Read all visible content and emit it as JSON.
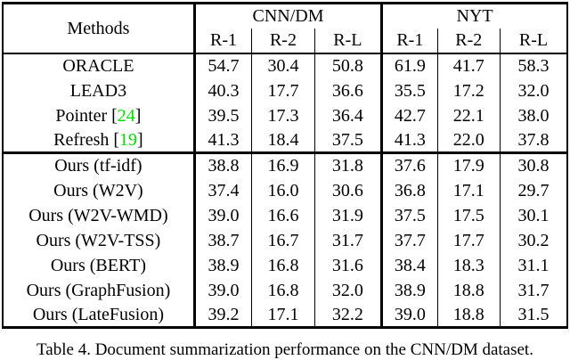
{
  "table": {
    "header": {
      "methods_label": "Methods",
      "groups": [
        {
          "label": "CNN/DM",
          "subcols": [
            "R-1",
            "R-2",
            "R-L"
          ]
        },
        {
          "label": "NYT",
          "subcols": [
            "R-1",
            "R-2",
            "R-L"
          ]
        }
      ]
    },
    "baseline_rows": [
      {
        "method": "ORACLE",
        "citation": null,
        "values": [
          "54.7",
          "30.4",
          "50.8",
          "61.9",
          "41.7",
          "58.3"
        ]
      },
      {
        "method": "LEAD3",
        "citation": null,
        "values": [
          "40.3",
          "17.7",
          "36.6",
          "35.5",
          "17.2",
          "32.0"
        ]
      },
      {
        "method": "Pointer",
        "citation": "24",
        "values": [
          "39.5",
          "17.3",
          "36.4",
          "42.7",
          "22.1",
          "38.0"
        ]
      },
      {
        "method": "Refresh",
        "citation": "19",
        "values": [
          "41.3",
          "18.4",
          "37.5",
          "41.3",
          "22.0",
          "37.8"
        ]
      }
    ],
    "ours_rows": [
      {
        "method": "Ours (tf-idf)",
        "citation": null,
        "values": [
          "38.8",
          "16.9",
          "31.8",
          "37.6",
          "17.9",
          "30.8"
        ]
      },
      {
        "method": "Ours (W2V)",
        "citation": null,
        "values": [
          "37.4",
          "16.0",
          "30.6",
          "36.8",
          "17.1",
          "29.7"
        ]
      },
      {
        "method": "Ours (W2V-WMD)",
        "citation": null,
        "values": [
          "39.0",
          "16.6",
          "31.9",
          "37.5",
          "17.5",
          "30.1"
        ]
      },
      {
        "method": "Ours (W2V-TSS)",
        "citation": null,
        "values": [
          "38.7",
          "16.7",
          "31.7",
          "37.7",
          "17.7",
          "30.2"
        ]
      },
      {
        "method": "Ours (BERT)",
        "citation": null,
        "values": [
          "38.9",
          "16.8",
          "31.6",
          "38.4",
          "18.3",
          "31.1"
        ]
      },
      {
        "method": "Ours (GraphFusion)",
        "citation": null,
        "values": [
          "39.0",
          "16.8",
          "32.0",
          "38.9",
          "18.8",
          "31.7"
        ]
      },
      {
        "method": "Ours (LateFusion)",
        "citation": null,
        "values": [
          "39.2",
          "17.1",
          "32.2",
          "39.0",
          "18.8",
          "31.5"
        ]
      }
    ]
  },
  "caption": "Table 4. Document summarization performance on the CNN/DM dataset.",
  "colors": {
    "citation_green": "#00dd00",
    "border_black": "#000000"
  }
}
